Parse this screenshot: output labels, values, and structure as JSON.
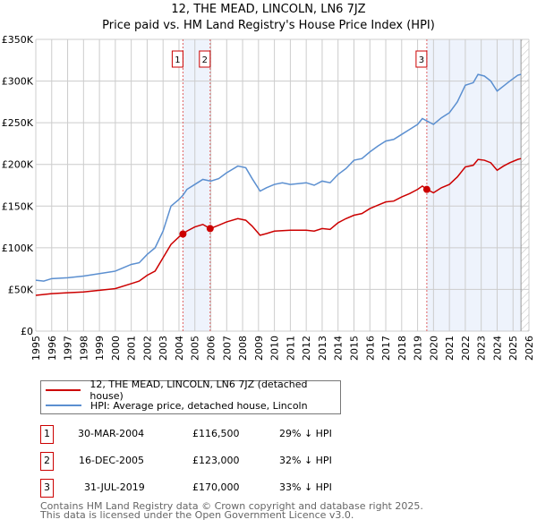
{
  "chart_data": {
    "type": "line",
    "title": "12, THE MEAD, LINCOLN, LN6 7JZ",
    "subtitle": "Price paid vs. HM Land Registry's House Price Index (HPI)",
    "xlim": [
      1995,
      2026
    ],
    "ylim": [
      0,
      350000
    ],
    "x_ticks": [
      "1995",
      "1996",
      "1997",
      "1998",
      "1999",
      "2000",
      "2001",
      "2002",
      "2003",
      "2004",
      "2005",
      "2006",
      "2007",
      "2008",
      "2009",
      "2010",
      "2011",
      "2012",
      "2013",
      "2014",
      "2015",
      "2016",
      "2017",
      "2018",
      "2019",
      "2020",
      "2021",
      "2022",
      "2023",
      "2024",
      "2025",
      "2026"
    ],
    "y_ticks": [
      {
        "v": 0,
        "l": "£0"
      },
      {
        "v": 50000,
        "l": "£50K"
      },
      {
        "v": 100000,
        "l": "£100K"
      },
      {
        "v": 150000,
        "l": "£150K"
      },
      {
        "v": 200000,
        "l": "£200K"
      },
      {
        "v": 250000,
        "l": "£250K"
      },
      {
        "v": 300000,
        "l": "£300K"
      },
      {
        "v": 350000,
        "l": "£350K"
      }
    ],
    "grid": true,
    "shaded_ranges": [
      [
        2004.25,
        2005.96
      ],
      [
        2019.58,
        2025.5
      ]
    ],
    "forecast_hatch_from": 2025.5,
    "series": [
      {
        "name": "12, THE MEAD, LINCOLN, LN6 7JZ (detached house)",
        "color": "#cc0000",
        "x": [
          1995,
          1996,
          1997,
          1998,
          1999,
          2000,
          2001,
          2001.5,
          2002,
          2002.5,
          2003,
          2003.5,
          2004,
          2004.25,
          2004.5,
          2005,
          2005.5,
          2005.96,
          2006.5,
          2007,
          2007.7,
          2008.2,
          2008.6,
          2009.1,
          2009.5,
          2010,
          2011,
          2012,
          2012.5,
          2013,
          2013.5,
          2014,
          2014.5,
          2015,
          2015.5,
          2016,
          2016.5,
          2017,
          2017.5,
          2018,
          2018.5,
          2019,
          2019.3,
          2019.58,
          2020,
          2020.5,
          2021,
          2021.5,
          2022,
          2022.5,
          2022.8,
          2023.2,
          2023.6,
          2024,
          2024.4,
          2024.8,
          2025.3,
          2025.5
        ],
        "y": [
          43000,
          45000,
          46000,
          47000,
          49000,
          51000,
          57000,
          60000,
          67000,
          72000,
          88000,
          104000,
          113000,
          116500,
          120000,
          125000,
          128000,
          123000,
          127000,
          131000,
          135000,
          133000,
          126000,
          115000,
          117000,
          120000,
          121000,
          121000,
          120000,
          123000,
          122000,
          130000,
          135000,
          139000,
          141000,
          147000,
          151000,
          155000,
          156000,
          161000,
          165000,
          170000,
          174000,
          170000,
          166000,
          172000,
          176000,
          185000,
          197000,
          199000,
          206000,
          205000,
          202000,
          193000,
          198000,
          202000,
          206000,
          207000
        ]
      },
      {
        "name": "HPI: Average price, detached house, Lincoln",
        "color": "#5b8fd0",
        "x": [
          1995,
          1995.5,
          1996,
          1997,
          1998,
          1999,
          2000,
          2000.5,
          2001,
          2001.5,
          2002,
          2002.5,
          2003,
          2003.5,
          2004,
          2004.25,
          2004.5,
          2005,
          2005.5,
          2006,
          2006.5,
          2007,
          2007.7,
          2008.2,
          2008.6,
          2009.1,
          2009.5,
          2010,
          2010.5,
          2011,
          2012,
          2012.5,
          2013,
          2013.5,
          2014,
          2014.5,
          2015,
          2015.5,
          2016,
          2016.5,
          2017,
          2017.5,
          2018,
          2018.5,
          2019,
          2019.3,
          2019.6,
          2020,
          2020.5,
          2021,
          2021.5,
          2022,
          2022.5,
          2022.8,
          2023.2,
          2023.6,
          2024,
          2024.4,
          2024.8,
          2025.3,
          2025.5
        ],
        "y": [
          61000,
          60000,
          63000,
          64000,
          66000,
          69000,
          72000,
          76000,
          80000,
          82000,
          92000,
          100000,
          120000,
          150000,
          158000,
          163000,
          170000,
          176000,
          182000,
          180000,
          183000,
          190000,
          198000,
          196000,
          183000,
          168000,
          172000,
          176000,
          178000,
          176000,
          178000,
          175000,
          180000,
          178000,
          188000,
          195000,
          205000,
          207000,
          215000,
          222000,
          228000,
          230000,
          236000,
          242000,
          248000,
          255000,
          252000,
          248000,
          256000,
          262000,
          275000,
          295000,
          298000,
          308000,
          306000,
          300000,
          288000,
          294000,
          300000,
          307000,
          308000
        ]
      }
    ],
    "markers": [
      {
        "id": "1",
        "x": 2004.25,
        "y": 116500
      },
      {
        "id": "2",
        "x": 2005.96,
        "y": 123000
      },
      {
        "id": "3",
        "x": 2019.58,
        "y": 170000
      }
    ]
  },
  "legend": [
    "12, THE MEAD, LINCOLN, LN6 7JZ (detached house)",
    "HPI: Average price, detached house, Lincoln"
  ],
  "transactions": [
    {
      "id": "1",
      "date": "30-MAR-2004",
      "price": "£116,500",
      "hpi": "29% ↓ HPI"
    },
    {
      "id": "2",
      "date": "16-DEC-2005",
      "price": "£123,000",
      "hpi": "32% ↓ HPI"
    },
    {
      "id": "3",
      "date": "31-JUL-2019",
      "price": "£170,000",
      "hpi": "33% ↓ HPI"
    }
  ],
  "footer": [
    "Contains HM Land Registry data © Crown copyright and database right 2025.",
    "This data is licensed under the Open Government Licence v3.0."
  ]
}
